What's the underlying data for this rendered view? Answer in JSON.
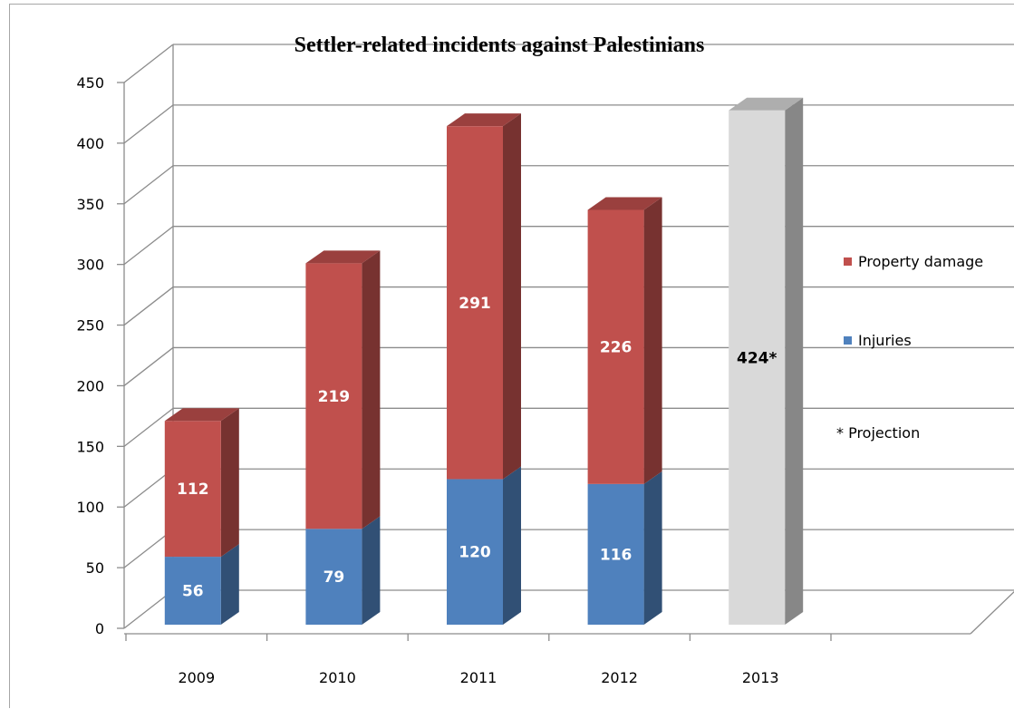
{
  "chart_data": {
    "type": "bar",
    "stacked": true,
    "three_d": true,
    "title": "Settler-related incidents against Palestinians",
    "categories": [
      "2009",
      "2010",
      "2011",
      "2012",
      "2013"
    ],
    "series": [
      {
        "name": "Injuries",
        "values": [
          56,
          79,
          120,
          116,
          null
        ],
        "color": "#4f81bd"
      },
      {
        "name": "Property damage",
        "values": [
          112,
          219,
          291,
          226,
          null
        ],
        "color": "#c0504d"
      }
    ],
    "projection": {
      "category": "2013",
      "value": 424,
      "label": "424*",
      "color": "#d9d9d9"
    },
    "legend_note": "* Projection",
    "y_ticks": [
      "0",
      "50",
      "100",
      "150",
      "200",
      "250",
      "300",
      "350",
      "400",
      "450"
    ],
    "ylim": [
      0,
      450
    ],
    "grid": true,
    "legend_position": "right"
  }
}
